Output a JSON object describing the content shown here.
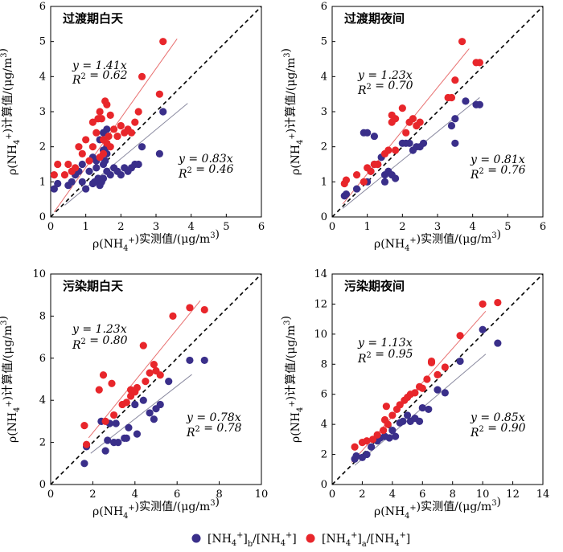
{
  "legend": {
    "blue_label": "[NH4+]b/[NH4+]",
    "red_label": "[NH4+]a/[NH4+]",
    "blue_color": "#3a2f8a",
    "red_color": "#e8262b"
  },
  "chart_data": [
    {
      "type": "scatter",
      "title": "过渡期白天",
      "xlabel": "ρ(NH4+)实测值/(μg/m3)",
      "ylabel": "ρ(NH4+)计算值/(μg/m3)",
      "xlim": [
        0,
        6
      ],
      "ylim": [
        0,
        6
      ],
      "xticks": [
        0,
        1,
        2,
        3,
        4,
        5,
        6
      ],
      "yticks": [
        0,
        1,
        2,
        3,
        4,
        5,
        6
      ],
      "series": [
        {
          "slope": 0.83,
          "fit_range": [
            0.4,
            3.9
          ],
          "eq": "y = 0.83x",
          "r2": "R2 = 0.46",
          "x": [
            0.1,
            0.2,
            0.5,
            0.6,
            0.7,
            0.8,
            0.9,
            1.0,
            1.1,
            1.2,
            1.25,
            1.3,
            1.35,
            1.4,
            1.45,
            1.5,
            1.5,
            1.55,
            1.6,
            1.6,
            1.7,
            1.8,
            1.9,
            2.0,
            2.1,
            2.2,
            2.3,
            2.4,
            2.5,
            2.6,
            3.1,
            3.2,
            1.4,
            1.5,
            1.6,
            1.3,
            1.5,
            1.6,
            0.9,
            1.2
          ],
          "y": [
            0.8,
            0.95,
            0.9,
            1.0,
            1.2,
            1.3,
            1.0,
            0.8,
            1.3,
            0.95,
            1.0,
            1.4,
            1.1,
            0.9,
            1.0,
            1.1,
            1.5,
            1.6,
            1.3,
            1.8,
            1.2,
            1.4,
            1.3,
            1.2,
            1.4,
            1.3,
            1.4,
            1.5,
            1.5,
            2.0,
            1.8,
            3.0,
            2.2,
            2.4,
            2.5,
            1.6,
            1.9,
            2.0,
            1.5,
            1.7
          ]
        },
        {
          "slope": 1.41,
          "fit_range": [
            0.1,
            3.6
          ],
          "eq": "y = 1.41x",
          "r2": "R2 = 0.62",
          "x": [
            0.1,
            0.2,
            0.4,
            0.5,
            0.6,
            0.7,
            0.8,
            0.9,
            1.0,
            1.1,
            1.2,
            1.3,
            1.35,
            1.4,
            1.45,
            1.5,
            1.55,
            1.6,
            1.65,
            1.7,
            1.8,
            1.9,
            2.0,
            2.1,
            2.2,
            2.3,
            2.4,
            2.5,
            2.6,
            3.1,
            3.2,
            1.5,
            1.6,
            1.7,
            1.2,
            1.4
          ],
          "y": [
            1.2,
            1.5,
            1.2,
            1.5,
            1.3,
            1.4,
            2.0,
            1.8,
            2.2,
            1.6,
            2.0,
            2.4,
            2.8,
            3.0,
            2.8,
            2.2,
            3.3,
            3.2,
            2.3,
            2.0,
            2.5,
            2.3,
            2.6,
            2.4,
            2.5,
            2.4,
            2.7,
            3.0,
            4.0,
            3.5,
            5.0,
            1.8,
            2.1,
            2.9,
            2.7,
            1.7
          ]
        }
      ]
    },
    {
      "type": "scatter",
      "title": "过渡期夜间",
      "xlabel": "ρ(NH4+)实测值/(μg/m3)",
      "ylabel": "ρ(NH4+)计算值/(μg/m3)",
      "xlim": [
        0,
        6
      ],
      "ylim": [
        0,
        6
      ],
      "xticks": [
        0,
        1,
        2,
        3,
        4,
        5,
        6
      ],
      "yticks": [
        0,
        1,
        2,
        3,
        4,
        5,
        6
      ],
      "series": [
        {
          "slope": 0.81,
          "fit_range": [
            0.3,
            4.2
          ],
          "eq": "y = 0.81x",
          "r2": "R2 = 0.76",
          "x": [
            0.35,
            0.4,
            0.7,
            0.9,
            1.0,
            1.1,
            1.2,
            1.3,
            1.4,
            1.5,
            1.5,
            1.6,
            1.7,
            1.8,
            2.0,
            2.1,
            2.2,
            2.3,
            2.4,
            2.5,
            2.6,
            3.4,
            3.5,
            3.5,
            3.8,
            4.1,
            4.2,
            1.0,
            1.2
          ],
          "y": [
            0.6,
            0.65,
            0.8,
            2.4,
            1.0,
            1.3,
            1.5,
            1.5,
            1.7,
            1.0,
            1.2,
            1.3,
            1.2,
            1.1,
            2.1,
            2.1,
            2.1,
            1.9,
            2.0,
            2.0,
            2.1,
            2.6,
            2.1,
            2.8,
            3.3,
            3.2,
            3.2,
            2.4,
            2.3
          ]
        },
        {
          "slope": 1.23,
          "fit_range": [
            0.3,
            3.9
          ],
          "eq": "y = 1.23x",
          "r2": "R2 = 0.70",
          "x": [
            0.35,
            0.4,
            0.7,
            0.9,
            1.0,
            1.1,
            1.2,
            1.3,
            1.5,
            1.6,
            1.7,
            1.8,
            2.0,
            2.1,
            2.2,
            2.3,
            2.4,
            2.5,
            3.3,
            3.4,
            3.5,
            3.7,
            4.1,
            4.2,
            1.7,
            1.8
          ],
          "y": [
            0.95,
            1.05,
            1.2,
            1.0,
            1.4,
            1.3,
            1.5,
            1.5,
            1.8,
            1.9,
            2.7,
            2.8,
            3.1,
            2.4,
            2.7,
            2.8,
            2.6,
            2.7,
            3.4,
            3.4,
            3.9,
            5.0,
            4.4,
            4.4,
            2.9,
            1.9
          ]
        }
      ]
    },
    {
      "type": "scatter",
      "title": "污染期白天",
      "xlabel": "ρ(NH4+)实测值/(μg/m3)",
      "ylabel": "ρ(NH4+)计算值/(μg/m3)",
      "xlim": [
        0,
        10
      ],
      "ylim": [
        0,
        10
      ],
      "xticks": [
        0,
        2,
        4,
        6,
        8,
        10
      ],
      "yticks": [
        0,
        2,
        4,
        6,
        8,
        10
      ],
      "series": [
        {
          "slope": 0.78,
          "fit_range": [
            1.9,
            6.7
          ],
          "eq": "y = 0.78x",
          "r2": "R2 = 0.78",
          "x": [
            1.6,
            1.7,
            2.4,
            2.6,
            2.7,
            2.8,
            3.0,
            3.1,
            3.2,
            3.5,
            3.6,
            3.7,
            4.0,
            4.1,
            4.4,
            4.7,
            4.9,
            5.0,
            5.2,
            5.6,
            6.6,
            7.3
          ],
          "y": [
            1.0,
            1.8,
            3.0,
            1.6,
            2.1,
            2.9,
            2.0,
            2.9,
            2.0,
            2.2,
            2.2,
            2.7,
            3.8,
            2.4,
            4.0,
            3.4,
            3.1,
            3.6,
            3.8,
            4.9,
            5.9,
            5.9
          ]
        },
        {
          "slope": 1.23,
          "fit_range": [
            1.8,
            7.1
          ],
          "eq": "y = 1.23x",
          "r2": "R2 = 0.80",
          "x": [
            1.6,
            1.7,
            2.3,
            2.5,
            2.6,
            2.9,
            3.0,
            3.4,
            3.6,
            3.8,
            4.0,
            4.1,
            4.4,
            4.5,
            4.7,
            4.9,
            5.0,
            5.2,
            5.8,
            6.6,
            7.3,
            3.8
          ],
          "y": [
            2.8,
            1.9,
            4.5,
            5.2,
            3.0,
            4.8,
            3.3,
            3.8,
            3.9,
            4.5,
            4.4,
            4.6,
            6.6,
            4.9,
            5.3,
            5.7,
            5.4,
            5.2,
            8.0,
            8.4,
            8.3,
            4.2
          ]
        }
      ]
    },
    {
      "type": "scatter",
      "title": "污染期夜间",
      "xlabel": "ρ(NH4+)实测值/(μg/m3)",
      "ylabel": "ρ(NH4+)计算值/(μg/m3)",
      "xlim": [
        0,
        14
      ],
      "ylim": [
        0,
        14
      ],
      "xticks": [
        0,
        2,
        4,
        6,
        8,
        10,
        12,
        14
      ],
      "yticks": [
        0,
        2,
        4,
        6,
        8,
        10,
        12,
        14
      ],
      "series": [
        {
          "slope": 0.85,
          "fit_range": [
            1.5,
            10.2
          ],
          "eq": "y = 0.85x",
          "r2": "R2 = 0.90",
          "x": [
            1.5,
            1.6,
            2.0,
            2.3,
            2.6,
            3.0,
            3.2,
            3.5,
            3.8,
            4.0,
            4.2,
            4.5,
            4.7,
            5.0,
            5.2,
            5.5,
            5.8,
            6.0,
            6.4,
            7.0,
            7.5,
            8.5,
            10.0,
            11.0
          ],
          "y": [
            1.7,
            1.9,
            1.8,
            2.0,
            2.5,
            2.9,
            3.1,
            3.2,
            3.1,
            3.6,
            3.2,
            4.1,
            4.2,
            4.6,
            4.2,
            4.4,
            4.2,
            5.1,
            5.0,
            6.3,
            6.1,
            8.2,
            10.3,
            9.4
          ]
        },
        {
          "slope": 1.13,
          "fit_range": [
            1.3,
            10.2
          ],
          "eq": "y = 1.13x",
          "r2": "R2 = 0.95",
          "x": [
            1.5,
            2.0,
            2.3,
            2.7,
            3.0,
            3.4,
            3.5,
            3.7,
            4.0,
            4.3,
            4.5,
            4.8,
            5.0,
            5.2,
            5.5,
            5.8,
            6.0,
            6.3,
            6.6,
            7.0,
            7.5,
            8.5,
            10.0,
            11.0,
            3.6,
            6.6
          ],
          "y": [
            2.5,
            2.8,
            2.9,
            3.0,
            3.3,
            3.6,
            4.3,
            4.0,
            4.6,
            5.0,
            5.3,
            5.6,
            5.8,
            6.0,
            6.1,
            6.5,
            6.4,
            7.0,
            8.2,
            7.3,
            7.8,
            9.9,
            12.0,
            12.1,
            5.2,
            8.1
          ]
        }
      ]
    }
  ]
}
